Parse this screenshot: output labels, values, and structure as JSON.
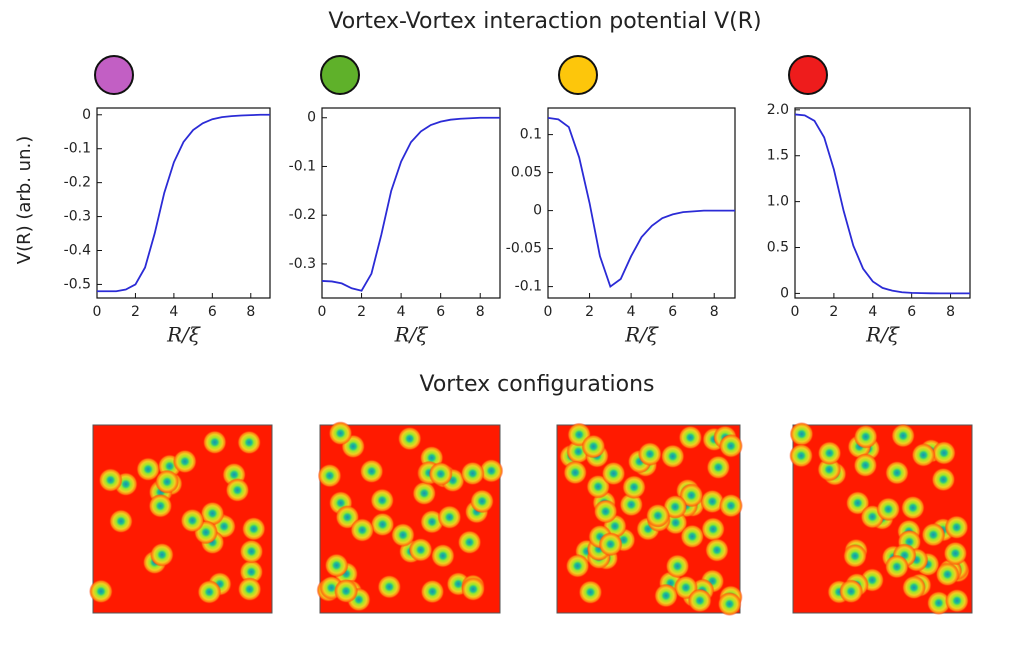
{
  "title": "Vortex-Vortex interaction potential V(R)",
  "ylabel": "V(R) (arb. un.)",
  "section_title": "Vortex configurations",
  "chart_data": [
    {
      "type": "line",
      "marker_color": "#c25fc4",
      "xlabel": "R/ξ",
      "x": [
        0,
        0.5,
        1,
        1.5,
        2,
        2.5,
        3,
        3.5,
        4,
        4.5,
        5,
        5.5,
        6,
        6.5,
        7,
        7.5,
        8,
        8.5,
        9
      ],
      "series": [
        {
          "color": "#2b2bd6",
          "values": [
            -0.52,
            -0.52,
            -0.52,
            -0.515,
            -0.5,
            -0.45,
            -0.35,
            -0.23,
            -0.14,
            -0.08,
            -0.045,
            -0.025,
            -0.013,
            -0.007,
            -0.004,
            -0.002,
            -0.001,
            0,
            0
          ]
        }
      ],
      "xlim": [
        0,
        9
      ],
      "ylim": [
        -0.54,
        0.02
      ],
      "xticks": [
        0,
        2,
        4,
        6,
        8
      ],
      "yticks": [
        0,
        -0.1,
        -0.2,
        -0.3,
        -0.4,
        -0.5
      ]
    },
    {
      "type": "line",
      "marker_color": "#5fb12a",
      "xlabel": "R/ξ",
      "x": [
        0,
        0.5,
        1,
        1.5,
        2,
        2.5,
        3,
        3.5,
        4,
        4.5,
        5,
        5.5,
        6,
        6.5,
        7,
        7.5,
        8,
        8.5,
        9
      ],
      "series": [
        {
          "color": "#2b2bd6",
          "values": [
            -0.335,
            -0.336,
            -0.34,
            -0.35,
            -0.355,
            -0.32,
            -0.24,
            -0.15,
            -0.09,
            -0.05,
            -0.028,
            -0.015,
            -0.008,
            -0.004,
            -0.002,
            -0.001,
            0,
            0,
            0
          ]
        }
      ],
      "xlim": [
        0,
        9
      ],
      "ylim": [
        -0.37,
        0.02
      ],
      "xticks": [
        0,
        2,
        4,
        6,
        8
      ],
      "yticks": [
        0,
        -0.1,
        -0.2,
        -0.3
      ]
    },
    {
      "type": "line",
      "marker_color": "#fdc60b",
      "xlabel": "R/ξ",
      "x": [
        0,
        0.5,
        1,
        1.5,
        2,
        2.5,
        3,
        3.5,
        4,
        4.5,
        5,
        5.5,
        6,
        6.5,
        7,
        7.5,
        8,
        8.5,
        9
      ],
      "series": [
        {
          "color": "#2b2bd6",
          "values": [
            0.122,
            0.12,
            0.11,
            0.07,
            0.01,
            -0.06,
            -0.1,
            -0.09,
            -0.06,
            -0.035,
            -0.02,
            -0.01,
            -0.005,
            -0.002,
            -0.001,
            0,
            0,
            0,
            0
          ]
        }
      ],
      "xlim": [
        0,
        9
      ],
      "ylim": [
        -0.115,
        0.135
      ],
      "xticks": [
        0,
        2,
        4,
        6,
        8
      ],
      "yticks": [
        0.1,
        0.05,
        0,
        -0.05,
        -0.1
      ]
    },
    {
      "type": "line",
      "marker_color": "#ee1c1c",
      "xlabel": "R/ξ",
      "x": [
        0,
        0.5,
        1,
        1.5,
        2,
        2.5,
        3,
        3.5,
        4,
        4.5,
        5,
        5.5,
        6,
        6.5,
        7,
        7.5,
        8,
        8.5,
        9
      ],
      "series": [
        {
          "color": "#2b2bd6",
          "values": [
            1.95,
            1.94,
            1.88,
            1.7,
            1.35,
            0.9,
            0.52,
            0.27,
            0.13,
            0.06,
            0.03,
            0.013,
            0.006,
            0.003,
            0.001,
            0,
            0,
            0,
            0
          ]
        }
      ],
      "xlim": [
        0,
        9
      ],
      "ylim": [
        -0.05,
        2.02
      ],
      "xticks": [
        0,
        2,
        4,
        6,
        8
      ],
      "yticks": [
        0,
        0.5,
        {
          "value": 1,
          "label": "1.0"
        },
        1.5,
        {
          "value": 2,
          "label": "2.0"
        }
      ]
    }
  ]
}
